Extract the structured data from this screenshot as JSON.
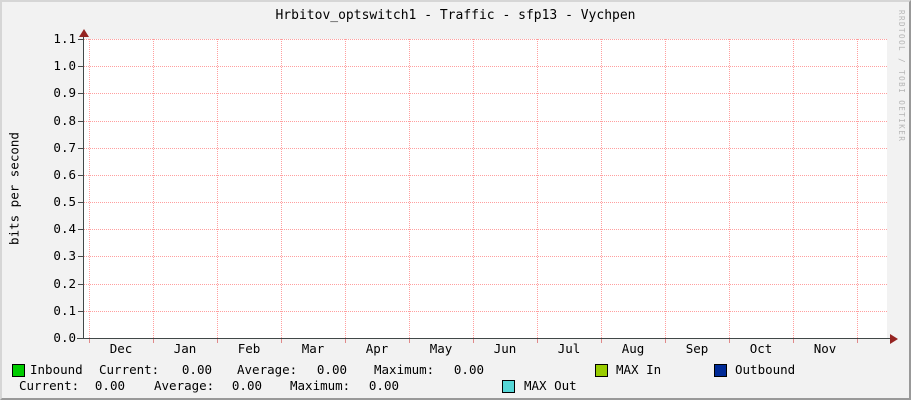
{
  "title": "Hrbitov_optswitch1 - Traffic - sfp13 - Vychpen",
  "watermark": "RRDTOOL / TOBI OETIKER",
  "y_axis_label": "bits per second",
  "y_ticks": [
    "1.1",
    "1.0",
    "0.9",
    "0.8",
    "0.7",
    "0.6",
    "0.5",
    "0.4",
    "0.3",
    "0.2",
    "0.1",
    "0.0"
  ],
  "months": [
    "Dec",
    "Jan",
    "Feb",
    "Mar",
    "Apr",
    "May",
    "Jun",
    "Jul",
    "Aug",
    "Sep",
    "Oct",
    "Nov"
  ],
  "colors": {
    "background": "#F2F2F2",
    "canvas": "#FFFFFF",
    "grid": "#FF9F9F",
    "axis": "#414747",
    "arrow": "#952422",
    "inbound": "#00CC00",
    "max_in": "#99CC00",
    "outbound": "#002A97",
    "max_out": "#55D6D6",
    "watermark_text": "#B5B5B5"
  },
  "legend": {
    "row1": {
      "inbound_label": "Inbound",
      "current_label": "Current:",
      "current_value": "0.00",
      "average_label": "Average:",
      "average_value": "0.00",
      "maximum_label": "Maximum:",
      "maximum_value": "0.00",
      "max_in_label": "MAX In",
      "outbound_label": "Outbound"
    },
    "row2": {
      "current_label": "Current:",
      "current_value": "0.00",
      "average_label": "Average:",
      "average_value": "0.00",
      "maximum_label": "Maximum:",
      "maximum_value": "0.00",
      "max_out_label": "MAX Out"
    }
  },
  "chart_data": {
    "type": "line",
    "title": "Hrbitov_optswitch1 - Traffic - sfp13 - Vychpen",
    "xlabel": "",
    "ylabel": "bits per second",
    "ylim": [
      0.0,
      1.1
    ],
    "y_tick_values": [
      0.0,
      0.1,
      0.2,
      0.3,
      0.4,
      0.5,
      0.6,
      0.7,
      0.8,
      0.9,
      1.0,
      1.1
    ],
    "x_tick_labels": [
      "Dec",
      "Jan",
      "Feb",
      "Mar",
      "Apr",
      "May",
      "Jun",
      "Jul",
      "Aug",
      "Sep",
      "Oct",
      "Nov"
    ],
    "grid": true,
    "legend_position": "bottom",
    "series": [
      {
        "name": "Inbound",
        "color": "#00CC00",
        "current": 0.0,
        "average": 0.0,
        "maximum": 0.0,
        "values": [
          0,
          0,
          0,
          0,
          0,
          0,
          0,
          0,
          0,
          0,
          0,
          0
        ]
      },
      {
        "name": "Outbound",
        "color": "#002A97",
        "current": 0.0,
        "average": 0.0,
        "maximum": 0.0,
        "values": [
          0,
          0,
          0,
          0,
          0,
          0,
          0,
          0,
          0,
          0,
          0,
          0
        ]
      },
      {
        "name": "MAX In",
        "color": "#99CC00",
        "values": [
          0,
          0,
          0,
          0,
          0,
          0,
          0,
          0,
          0,
          0,
          0,
          0
        ]
      },
      {
        "name": "MAX Out",
        "color": "#55D6D6",
        "values": [
          0,
          0,
          0,
          0,
          0,
          0,
          0,
          0,
          0,
          0,
          0,
          0
        ]
      }
    ]
  }
}
